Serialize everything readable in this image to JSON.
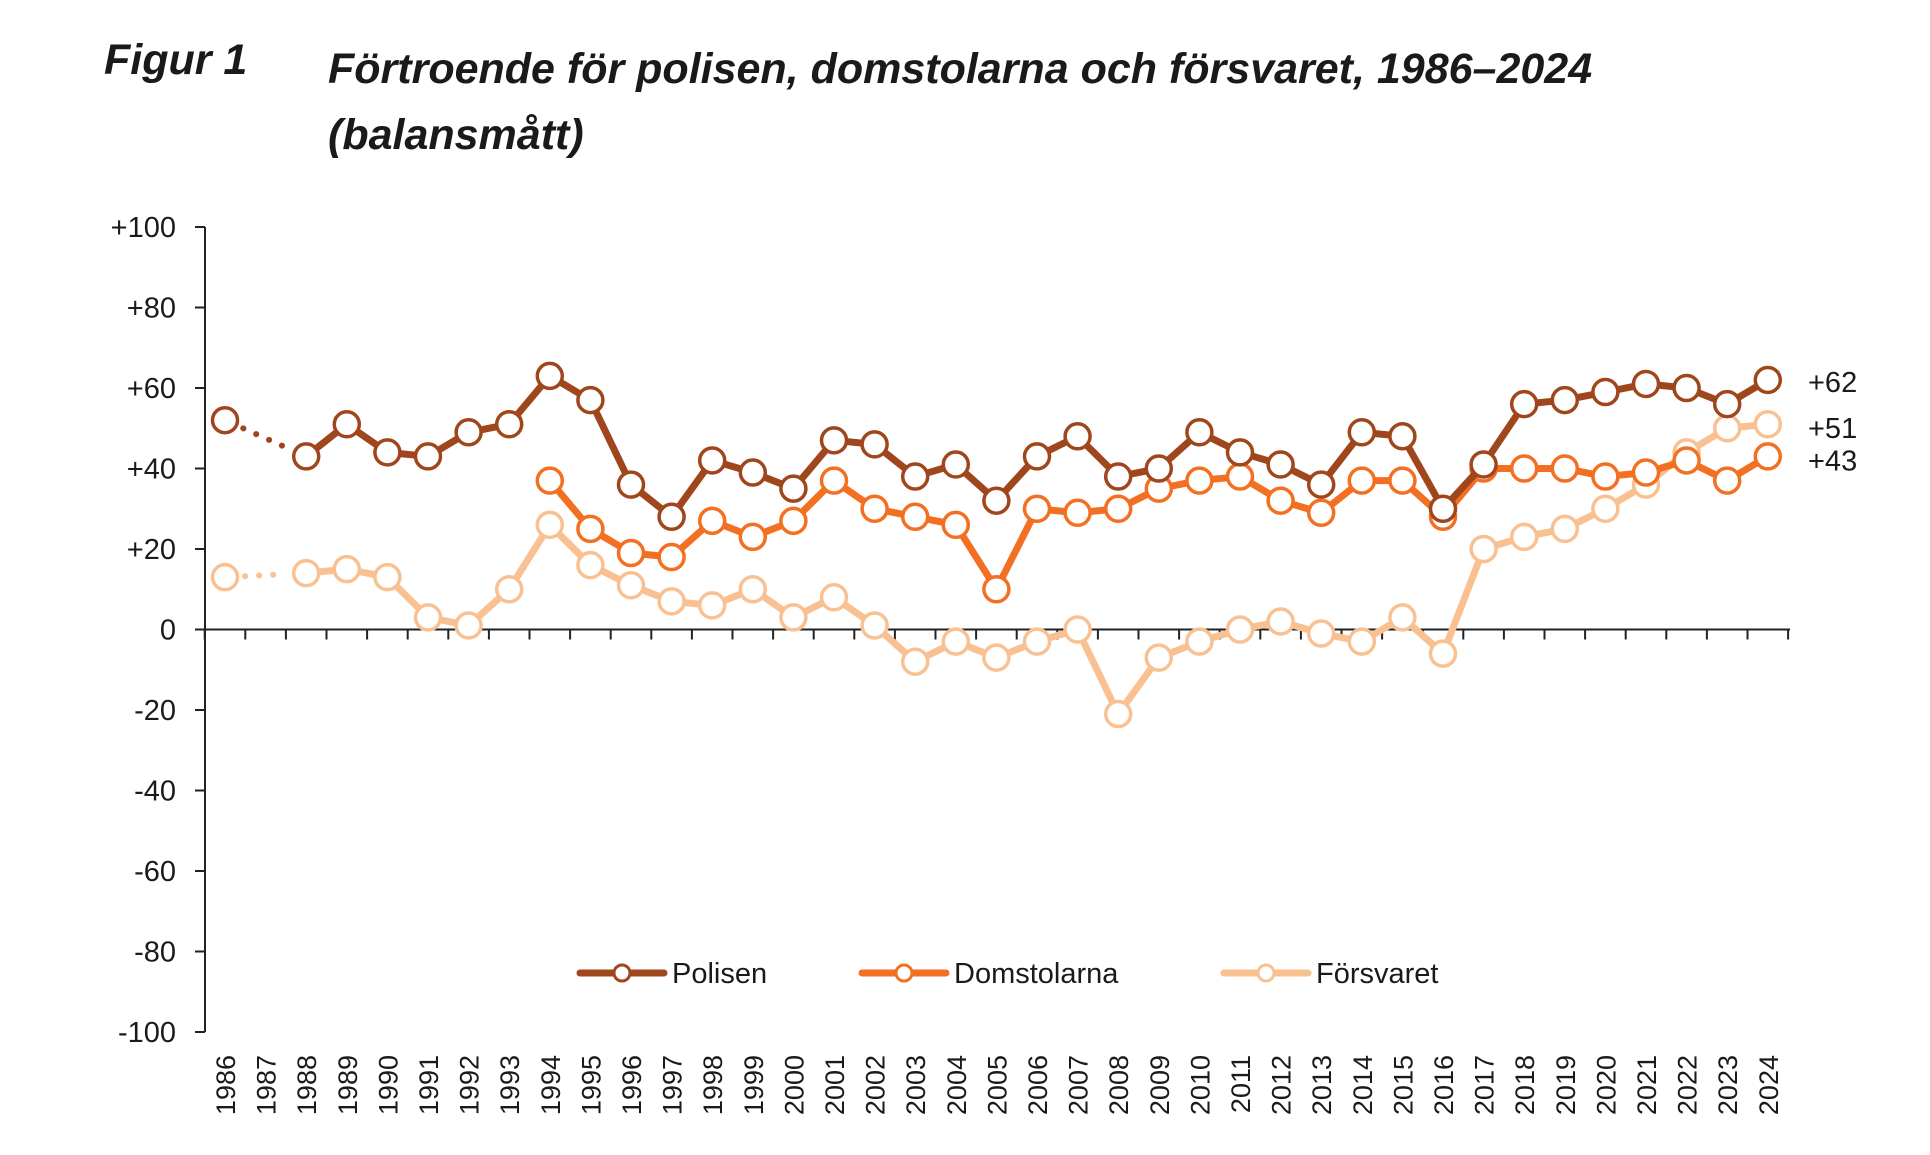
{
  "figure": {
    "label": "Figur 1",
    "title_line1": "Förtroende för polisen, domstolarna och försvaret, 1986–2024",
    "title_line2": "(balansmått)"
  },
  "chart_data": {
    "type": "line",
    "title": "Förtroende för polisen, domstolarna och försvaret, 1986–2024 (balansmått)",
    "xlabel": "",
    "ylabel": "",
    "ylim": [
      -100,
      100
    ],
    "yticks": [
      100,
      80,
      60,
      40,
      20,
      0,
      -20,
      -40,
      -60,
      -80,
      -100
    ],
    "ytick_labels": [
      "+100",
      "+80",
      "+60",
      "+40",
      "+20",
      "0",
      "-20",
      "-40",
      "-60",
      "-80",
      "-100"
    ],
    "categories": [
      "1986",
      "1987",
      "1988",
      "1989",
      "1990",
      "1991",
      "1992",
      "1993",
      "1994",
      "1995",
      "1996",
      "1997",
      "1998",
      "1999",
      "2000",
      "2001",
      "2002",
      "2003",
      "2004",
      "2005",
      "2006",
      "2007",
      "2008",
      "2009",
      "2010",
      "2011",
      "2012",
      "2013",
      "2014",
      "2015",
      "2016",
      "2017",
      "2018",
      "2019",
      "2020",
      "2021",
      "2022",
      "2023",
      "2024"
    ],
    "legend_position": "bottom-center",
    "series": [
      {
        "name": "Polisen",
        "color": "#a0461c",
        "linestyle": "solid",
        "gap_dotted_between": [
          "1986",
          "1988"
        ],
        "values": [
          52,
          null,
          43,
          51,
          44,
          43,
          49,
          51,
          63,
          57,
          36,
          28,
          42,
          39,
          35,
          47,
          46,
          38,
          41,
          32,
          43,
          48,
          38,
          40,
          49,
          44,
          41,
          36,
          49,
          48,
          30,
          41,
          56,
          57,
          59,
          61,
          60,
          56,
          62
        ],
        "end_label": "+62"
      },
      {
        "name": "Domstolarna",
        "color": "#f36f21",
        "linestyle": "solid",
        "values": [
          null,
          null,
          null,
          null,
          null,
          null,
          null,
          null,
          37,
          25,
          19,
          18,
          27,
          23,
          27,
          37,
          30,
          28,
          26,
          10,
          30,
          29,
          30,
          35,
          37,
          38,
          32,
          29,
          37,
          37,
          28,
          40,
          40,
          40,
          38,
          39,
          42,
          37,
          43
        ],
        "end_label": "+43"
      },
      {
        "name": "Försvaret",
        "color": "#f9c192",
        "linestyle": "solid",
        "gap_dotted_between": [
          "1986",
          "1988"
        ],
        "values": [
          13,
          null,
          14,
          15,
          13,
          3,
          1,
          10,
          26,
          16,
          11,
          7,
          6,
          10,
          3,
          8,
          1,
          -8,
          -3,
          -7,
          -3,
          0,
          -21,
          -7,
          -3,
          0,
          2,
          -1,
          -3,
          3,
          -6,
          20,
          23,
          25,
          30,
          36,
          44,
          50,
          51
        ],
        "end_label": "+51"
      }
    ]
  }
}
